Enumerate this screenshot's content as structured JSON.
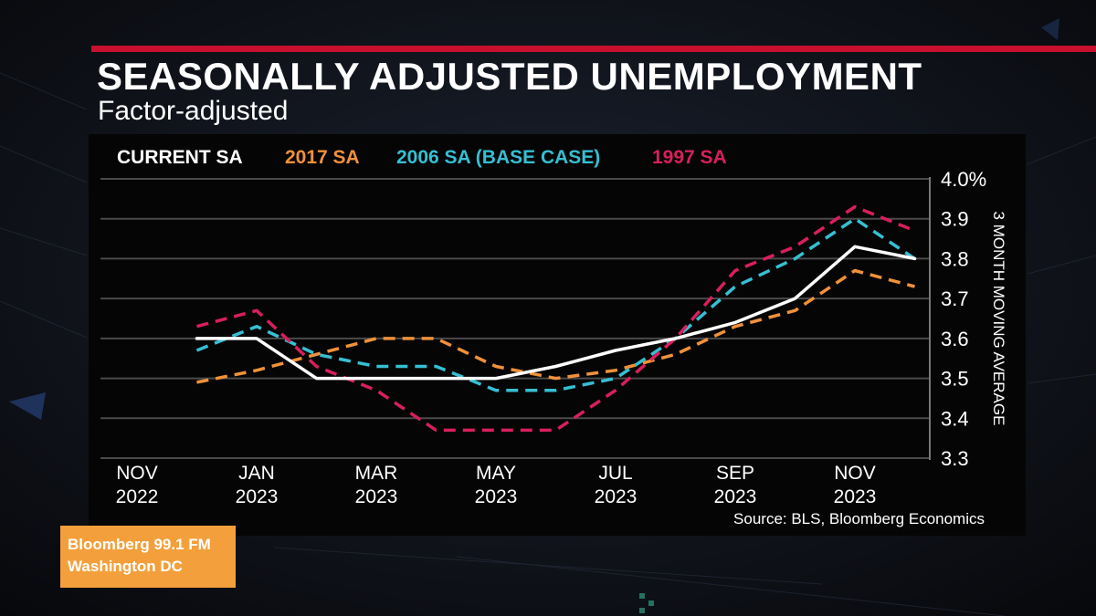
{
  "title": "SEASONALLY ADJUSTED UNEMPLOYMENT",
  "subtitle": "Factor-adjusted",
  "source": "Source: BLS, Bloomberg Economics",
  "badge": {
    "line1": "Bloomberg 99.1 FM",
    "line2": "Washington DC",
    "color": "#f3a03c"
  },
  "colors": {
    "accent_bar": "#c8102e",
    "panel": "#050505",
    "grid": "#555555"
  },
  "chart_data": {
    "type": "line",
    "title": "SEASONALLY ADJUSTED UNEMPLOYMENT",
    "subtitle": "Factor-adjusted",
    "ylabel": "3 MONTH MOVING AVERAGE",
    "ylim": [
      3.3,
      4.0
    ],
    "y_ticks": [
      "4.0%",
      "3.9",
      "3.8",
      "3.7",
      "3.6",
      "3.5",
      "3.4",
      "3.3"
    ],
    "y_tick_values": [
      4.0,
      3.9,
      3.8,
      3.7,
      3.6,
      3.5,
      3.4,
      3.3
    ],
    "y_axis_side": "right",
    "grid": true,
    "legend_placement": "top",
    "x": [
      "2022-11",
      "2022-12",
      "2023-01",
      "2023-02",
      "2023-03",
      "2023-04",
      "2023-05",
      "2023-06",
      "2023-07",
      "2023-08",
      "2023-09",
      "2023-10",
      "2023-11",
      "2023-12"
    ],
    "x_ticks": [
      {
        "month": "NOV",
        "year": "2022",
        "x": "2022-11"
      },
      {
        "month": "JAN",
        "year": "2023",
        "x": "2023-01"
      },
      {
        "month": "MAR",
        "year": "2023",
        "x": "2023-03"
      },
      {
        "month": "MAY",
        "year": "2023",
        "x": "2023-05"
      },
      {
        "month": "JUL",
        "year": "2023",
        "x": "2023-07"
      },
      {
        "month": "SEP",
        "year": "2023",
        "x": "2023-09"
      },
      {
        "month": "NOV",
        "year": "2023",
        "x": "2023-11"
      }
    ],
    "series": [
      {
        "name": "CURRENT SA",
        "color": "#ffffff",
        "dashed": false,
        "x": [
          "2022-12",
          "2023-01",
          "2023-02",
          "2023-03",
          "2023-04",
          "2023-05",
          "2023-06",
          "2023-07",
          "2023-08",
          "2023-09",
          "2023-10",
          "2023-11",
          "2023-12"
        ],
        "values": [
          3.6,
          3.6,
          3.5,
          3.5,
          3.5,
          3.5,
          3.53,
          3.57,
          3.6,
          3.64,
          3.7,
          3.83,
          3.8
        ]
      },
      {
        "name": "2017 SA",
        "color": "#f0913a",
        "dashed": true,
        "x": [
          "2022-12",
          "2023-01",
          "2023-02",
          "2023-03",
          "2023-04",
          "2023-05",
          "2023-06",
          "2023-07",
          "2023-08",
          "2023-09",
          "2023-10",
          "2023-11",
          "2023-12"
        ],
        "values": [
          3.49,
          3.52,
          3.56,
          3.6,
          3.6,
          3.53,
          3.5,
          3.52,
          3.56,
          3.63,
          3.67,
          3.77,
          3.73
        ]
      },
      {
        "name": "2006 SA (BASE CASE)",
        "color": "#36bfd2",
        "dashed": true,
        "x": [
          "2022-12",
          "2023-01",
          "2023-02",
          "2023-03",
          "2023-04",
          "2023-05",
          "2023-06",
          "2023-07",
          "2023-08",
          "2023-09",
          "2023-10",
          "2023-11",
          "2023-12"
        ],
        "values": [
          3.57,
          3.63,
          3.56,
          3.53,
          3.53,
          3.47,
          3.47,
          3.5,
          3.6,
          3.73,
          3.8,
          3.9,
          3.8
        ]
      },
      {
        "name": "1997 SA",
        "color": "#d81f5d",
        "dashed": true,
        "x": [
          "2022-12",
          "2023-01",
          "2023-02",
          "2023-03",
          "2023-04",
          "2023-05",
          "2023-06",
          "2023-07",
          "2023-08",
          "2023-09",
          "2023-10",
          "2023-11",
          "2023-12"
        ],
        "values": [
          3.63,
          3.67,
          3.53,
          3.47,
          3.37,
          3.37,
          3.37,
          3.47,
          3.6,
          3.77,
          3.83,
          3.93,
          3.87
        ]
      }
    ]
  }
}
